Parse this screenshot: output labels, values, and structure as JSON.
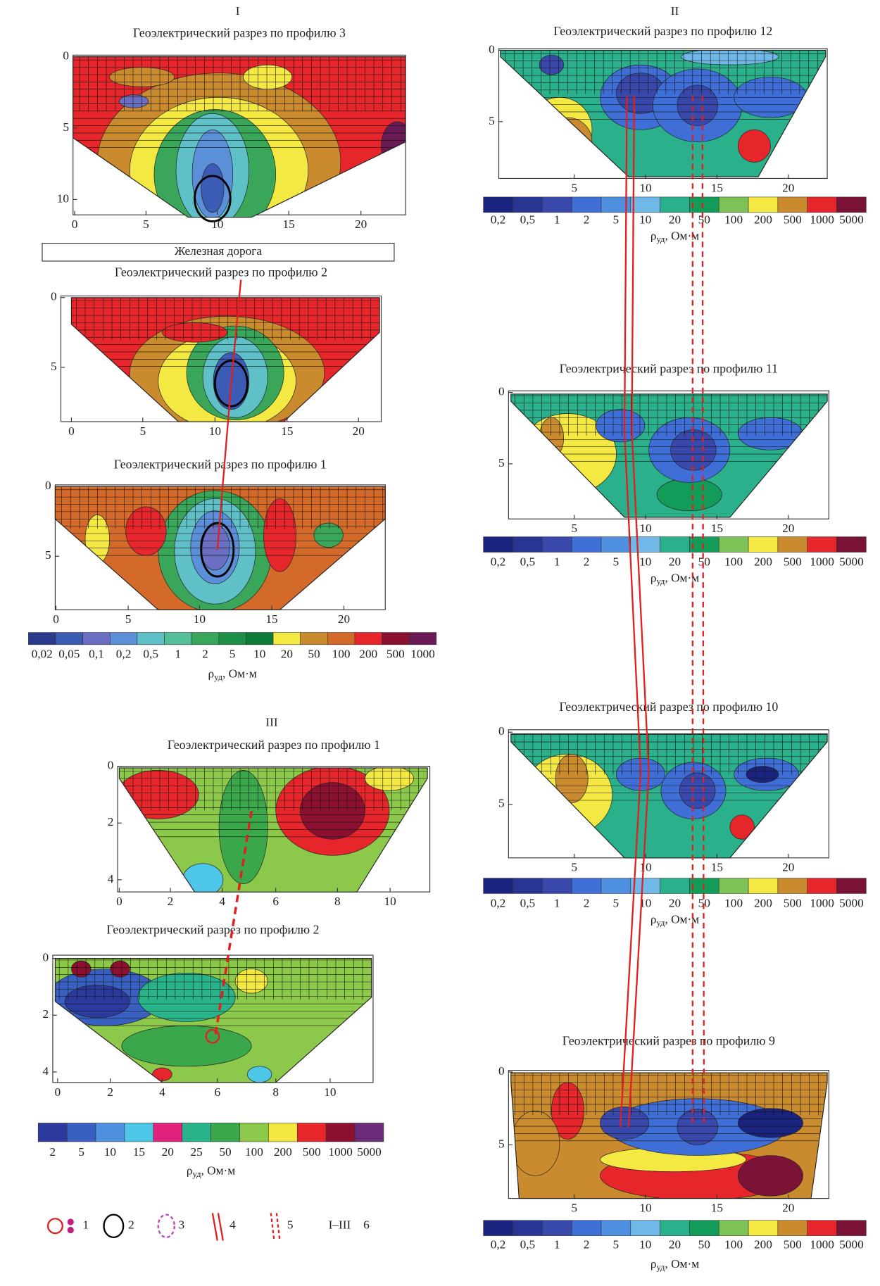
{
  "group_labels": [
    "I",
    "II",
    "III"
  ],
  "railway_label": "Железная дорога",
  "panels": [
    {
      "title": "Геоэлектрический разрез по профилю 3",
      "xticks": [
        "0",
        "5",
        "10",
        "15",
        "20"
      ],
      "yticks": [
        "0",
        "5",
        "10"
      ]
    },
    {
      "title": "Геоэлектрический разрез по профилю 2",
      "xticks": [
        "0",
        "5",
        "10",
        "15",
        "20"
      ],
      "yticks": [
        "0",
        "5"
      ]
    },
    {
      "title": "Геоэлектрический разрез по профилю 1",
      "xticks": [
        "0",
        "5",
        "10",
        "15",
        "20"
      ],
      "yticks": [
        "0",
        "5"
      ]
    },
    {
      "title": "Геоэлектрический разрез по профилю 1",
      "xticks": [
        "0",
        "2",
        "4",
        "6",
        "8",
        "10"
      ],
      "yticks": [
        "0",
        "2",
        "4"
      ]
    },
    {
      "title": "Геоэлектрический разрез по профилю 2",
      "xticks": [
        "0",
        "2",
        "4",
        "6",
        "8",
        "10"
      ],
      "yticks": [
        "0",
        "2",
        "4"
      ]
    },
    {
      "title": "Геоэлектрический разрез по профилю 12",
      "xticks": [
        "5",
        "10",
        "15",
        "20"
      ],
      "yticks": [
        "0",
        "5"
      ]
    },
    {
      "title": "Геоэлектрический разрез по профилю 11",
      "xticks": [
        "5",
        "10",
        "15",
        "20"
      ],
      "yticks": [
        "0",
        "5"
      ]
    },
    {
      "title": "Геоэлектрический разрез по профилю 10",
      "xticks": [
        "5",
        "10",
        "15",
        "20"
      ],
      "yticks": [
        "0",
        "5"
      ]
    },
    {
      "title": "Геоэлектрический разрез по профилю 9",
      "xticks": [
        "5",
        "10",
        "15",
        "20"
      ],
      "yticks": [
        "0",
        "5"
      ]
    }
  ],
  "colorbars": [
    {
      "labels": [
        "0,02",
        "0,05",
        "0,1",
        "0,2",
        "0,5",
        "1",
        "2",
        "5",
        "10",
        "20",
        "50",
        "100",
        "200",
        "500",
        "1000"
      ],
      "colors": [
        "#2b3a8c",
        "#3b5bb5",
        "#6a6fc2",
        "#5b8fd8",
        "#5fc0c8",
        "#55bf9a",
        "#3aa65a",
        "#1d8f47",
        "#0f7a3a",
        "#f4e842",
        "#c98b2d",
        "#d46a2a",
        "#e6262b",
        "#8c1030",
        "#6a1a55"
      ]
    },
    {
      "labels": [
        "0,2",
        "0,5",
        "1",
        "2",
        "5",
        "10",
        "20",
        "50",
        "100",
        "200",
        "500",
        "1000",
        "5000"
      ],
      "colors": [
        "#1a237e",
        "#283593",
        "#3949ab",
        "#3f6fd6",
        "#4f8fe0",
        "#6fb8e8",
        "#2ab08a",
        "#139b5a",
        "#7cc257",
        "#f4e842",
        "#c98b2d",
        "#e6262b",
        "#7b1237"
      ]
    },
    {
      "labels": [
        "0,2",
        "0,5",
        "1",
        "2",
        "5",
        "10",
        "20",
        "50",
        "100",
        "200",
        "500",
        "1000",
        "5000"
      ],
      "colors": [
        "#1a237e",
        "#283593",
        "#3949ab",
        "#3f6fd6",
        "#4f8fe0",
        "#6fb8e8",
        "#2ab08a",
        "#139b5a",
        "#7cc257",
        "#f4e842",
        "#c98b2d",
        "#e6262b",
        "#7b1237"
      ]
    },
    {
      "labels": [
        "0,2",
        "0,5",
        "1",
        "2",
        "5",
        "10",
        "20",
        "50",
        "100",
        "200",
        "500",
        "1000",
        "5000"
      ],
      "colors": [
        "#1a237e",
        "#283593",
        "#3949ab",
        "#3f6fd6",
        "#4f8fe0",
        "#6fb8e8",
        "#2ab08a",
        "#139b5a",
        "#7cc257",
        "#f4e842",
        "#c98b2d",
        "#e6262b",
        "#7b1237"
      ]
    },
    {
      "labels": [
        "0,2",
        "0,5",
        "1",
        "2",
        "5",
        "10",
        "20",
        "50",
        "100",
        "200",
        "500",
        "1000",
        "5000"
      ],
      "colors": [
        "#1a237e",
        "#283593",
        "#3949ab",
        "#3f6fd6",
        "#4f8fe0",
        "#6fb8e8",
        "#2ab08a",
        "#139b5a",
        "#7cc257",
        "#f4e842",
        "#c98b2d",
        "#e6262b",
        "#7b1237"
      ]
    },
    {
      "labels": [
        "2",
        "5",
        "10",
        "15",
        "20",
        "25",
        "50",
        "100",
        "200",
        "500",
        "1000",
        "5000"
      ],
      "colors": [
        "#2b3a9c",
        "#3860c0",
        "#4f8fe0",
        "#4ec6e8",
        "#e0207a",
        "#29b38a",
        "#3aa84a",
        "#8cc84a",
        "#f2e841",
        "#e6262b",
        "#8c1030",
        "#6b2a7a"
      ]
    }
  ],
  "unit": {
    "symbol": "ρ",
    "sub": "уд",
    "rest": ", Ом·м"
  },
  "legend": [
    "1",
    "2",
    "3",
    "4",
    "5",
    "I–III",
    "6"
  ]
}
